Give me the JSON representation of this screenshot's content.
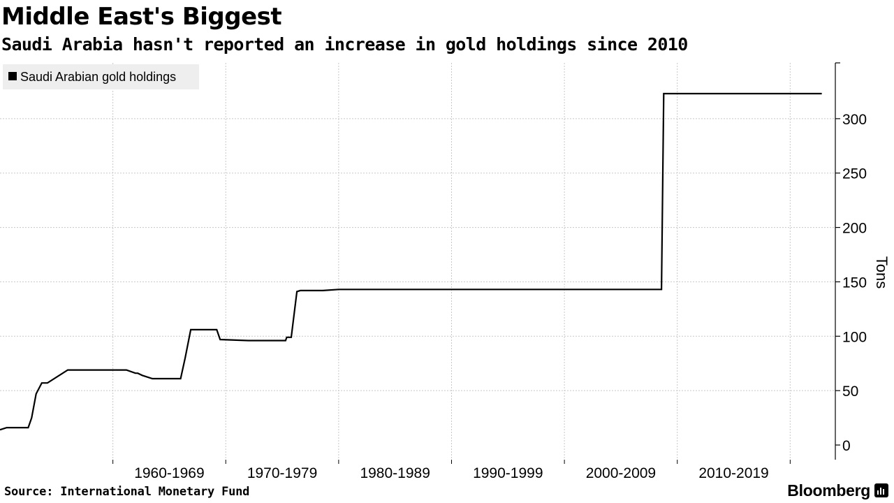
{
  "header": {
    "title": "Middle East's Biggest",
    "subtitle": "Saudi Arabia hasn't reported an increase in gold holdings since 2010"
  },
  "footer": {
    "source": "Source: International Monetary Fund",
    "brand": "Bloomberg",
    "brand_icon": "bloomberg-terminal-icon"
  },
  "colors": {
    "line": "#000000",
    "grid": "#c8c8c8",
    "legend_bg": "#eeeeee",
    "background": "#ffffff"
  },
  "chart_data": {
    "type": "line",
    "title": "Middle East's Biggest",
    "subtitle": "Saudi Arabia hasn't reported an increase in gold holdings since 2010",
    "xlabel": "",
    "ylabel": "Tons",
    "ylim": [
      0,
      350
    ],
    "y_ticks": [
      0,
      50,
      100,
      150,
      200,
      250,
      300
    ],
    "x_range": [
      1950,
      2024
    ],
    "x_ticks": [
      {
        "label": "1960-1969",
        "start": 1960,
        "end": 1970
      },
      {
        "label": "1970-1979",
        "start": 1970,
        "end": 1980
      },
      {
        "label": "1980-1989",
        "start": 1980,
        "end": 1990
      },
      {
        "label": "1990-1999",
        "start": 1990,
        "end": 2000
      },
      {
        "label": "2000-2009",
        "start": 2000,
        "end": 2010
      },
      {
        "label": "2010-2019",
        "start": 2010,
        "end": 2020
      }
    ],
    "grid": true,
    "legend": {
      "position": "top-left"
    },
    "series": [
      {
        "name": "Saudi Arabian gold holdings",
        "x": [
          1950.0,
          1950.6,
          1951.2,
          1952.5,
          1952.8,
          1953.2,
          1953.7,
          1954.2,
          1956.0,
          1958.0,
          1960.0,
          1961.2,
          1962.0,
          1962.2,
          1962.6,
          1963.5,
          1965.0,
          1966.0,
          1966.4,
          1966.9,
          1969.2,
          1969.5,
          1972.0,
          1975.0,
          1975.3,
          1975.4,
          1975.8,
          1976.3,
          1976.6,
          1977.0,
          1977.4,
          1978.0,
          1978.6,
          1980.0,
          1984.0,
          1990.0,
          1995.0,
          2000.0,
          2005.0,
          2008.6,
          2008.8,
          2010.0,
          2015.0,
          2020.0,
          2022.8
        ],
        "y": [
          14,
          16,
          16,
          16,
          25,
          47,
          57,
          57,
          69,
          69,
          69,
          69,
          66,
          66,
          64,
          61,
          61,
          61,
          80,
          106,
          106,
          97,
          96,
          96,
          96,
          99,
          99,
          141,
          142,
          142,
          142,
          142,
          142,
          143,
          143,
          143,
          143,
          143,
          143,
          143,
          323,
          323,
          323,
          323,
          323
        ]
      }
    ]
  }
}
